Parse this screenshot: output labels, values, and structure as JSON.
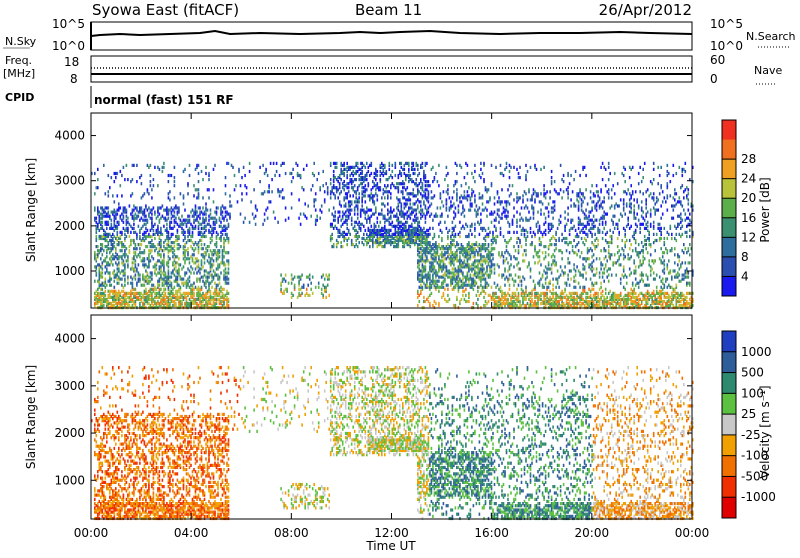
{
  "header": {
    "title": "Syowa East (fitACF)",
    "beam": "Beam 11",
    "date": "26/Apr/2012"
  },
  "nsky_panel": {
    "left_label": "N.Sky",
    "right_label": "N.Search",
    "left_ticks": [
      "10^5",
      "10^0"
    ],
    "right_ticks": [
      "10^5",
      "10^0"
    ]
  },
  "freq_panel": {
    "left_label_1": "Freq.",
    "left_label_2": "[MHz]",
    "right_label": "Nave",
    "left_ticks": [
      "18",
      "8"
    ],
    "right_ticks": [
      "60",
      "0"
    ]
  },
  "cpid_panel": {
    "label": "CPID",
    "mode_text": "normal (fast) 151 RF"
  },
  "chart_data": [
    {
      "type": "heatmap",
      "quantity": "Power",
      "ylabel": "Slant Range [km]",
      "xlabel": "Time UT",
      "ylim": [
        180,
        4500
      ],
      "yticks": [
        1000,
        2000,
        3000,
        4000
      ],
      "xticks": [
        "00:00",
        "04:00",
        "08:00",
        "12:00",
        "16:00",
        "20:00",
        "00:00"
      ],
      "colorbar_label": "Power [dB]",
      "colorbar_ticks": [
        "4",
        "8",
        "12",
        "16",
        "20",
        "24",
        "28"
      ],
      "colors": [
        "#1a1af0",
        "#2b4fb0",
        "#2e6e9e",
        "#3a9070",
        "#5cae4a",
        "#b8c23a",
        "#f0a020",
        "#f07020",
        "#f03020"
      ]
    },
    {
      "type": "heatmap",
      "quantity": "Velocity",
      "ylabel": "Slant Range [km]",
      "xlabel": "Time UT",
      "ylim": [
        180,
        4500
      ],
      "yticks": [
        1000,
        2000,
        3000,
        4000
      ],
      "xticks": [
        "00:00",
        "04:00",
        "08:00",
        "12:00",
        "16:00",
        "20:00",
        "00:00"
      ],
      "colorbar_label": "Velocity [m s⁻¹]",
      "colorbar_ticks": [
        "1000",
        "500",
        "100",
        "25",
        "-25",
        "-100",
        "-500",
        "-1000"
      ],
      "colors": [
        "#1f3fc0",
        "#2e5e9a",
        "#2e8a6e",
        "#5cc040",
        "#c8c8c8",
        "#f0a000",
        "#f07000",
        "#f03000",
        "#e00000"
      ]
    }
  ]
}
